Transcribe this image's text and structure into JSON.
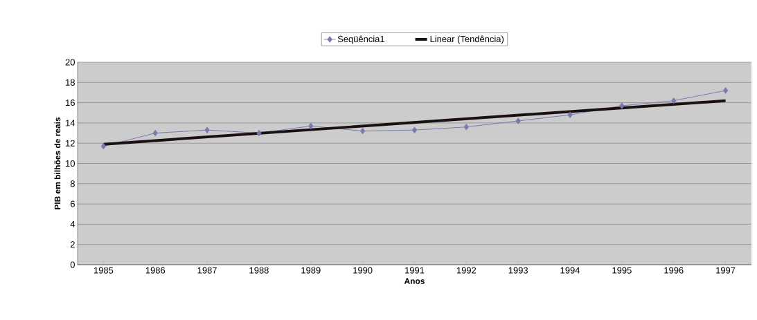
{
  "chart_data": {
    "type": "line",
    "xlabel": "Anos",
    "ylabel": "PIB em bilhões de reais",
    "x": [
      1985,
      1986,
      1987,
      1988,
      1989,
      1990,
      1991,
      1992,
      1993,
      1994,
      1995,
      1996,
      1997
    ],
    "xlim": [
      1984.5,
      1997.5
    ],
    "xticks": [
      1985,
      1986,
      1987,
      1988,
      1989,
      1990,
      1991,
      1992,
      1993,
      1994,
      1995,
      1996,
      1997
    ],
    "ylim": [
      0,
      20
    ],
    "yticks": [
      0,
      2,
      4,
      6,
      8,
      10,
      12,
      14,
      16,
      18,
      20
    ],
    "series": [
      {
        "name": "Seqüência1",
        "color": "#7b78b0",
        "values": [
          11.7,
          13.0,
          13.3,
          13.0,
          13.7,
          13.2,
          13.3,
          13.6,
          14.2,
          14.8,
          15.7,
          16.2,
          17.2
        ],
        "marker": "diamond"
      },
      {
        "name": "Linear (Tendência)",
        "color": "#1a1010",
        "type": "line",
        "x": [
          1985,
          1997
        ],
        "values": [
          11.9,
          16.2
        ],
        "marker": "none"
      }
    ],
    "grid": "y",
    "legend": "top",
    "line_style": "solid"
  }
}
